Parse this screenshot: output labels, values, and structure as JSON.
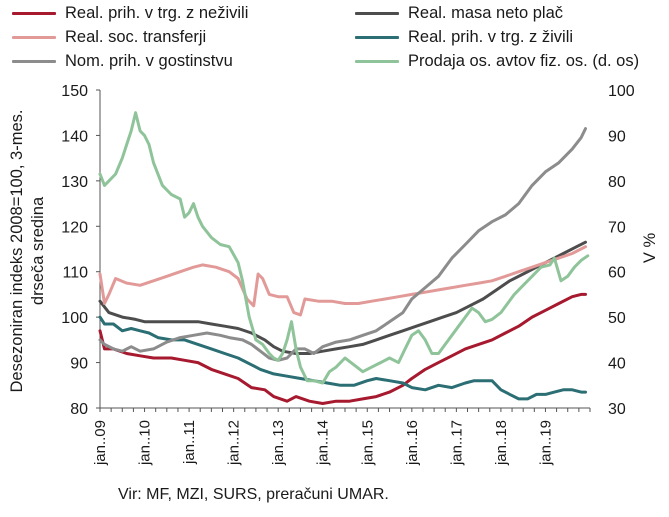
{
  "chart_data": {
    "type": "line",
    "ylabel": "Desezoniran indeks 2008=100, 3-mes. drseča sredina",
    "ylabel_lines": [
      "Desezoniran indeks 2008=100, 3-mes.",
      "drseča sredina"
    ],
    "y2label": "V %",
    "ylim": [
      80,
      150
    ],
    "yticks": [
      "80",
      "90",
      "100",
      "110",
      "120",
      "130",
      "140",
      "150"
    ],
    "y2lim": [
      30,
      100
    ],
    "y2ticks": [
      "30",
      "40",
      "50",
      "60",
      "70",
      "80",
      "90",
      "100"
    ],
    "xlim": [
      2009.0,
      2020.0
    ],
    "xticks": [
      {
        "x": 2009,
        "label": "jan..09"
      },
      {
        "x": 2010,
        "label": "jan..10"
      },
      {
        "x": 2011,
        "label": "jan..11"
      },
      {
        "x": 2012,
        "label": "jan..12"
      },
      {
        "x": 2013,
        "label": "jan..13"
      },
      {
        "x": 2014,
        "label": "jan..14"
      },
      {
        "x": 2015,
        "label": "jan..15"
      },
      {
        "x": 2016,
        "label": "jan..16"
      },
      {
        "x": 2017,
        "label": "jan..17"
      },
      {
        "x": 2018,
        "label": "jan..18"
      },
      {
        "x": 2019,
        "label": "jan..19"
      }
    ],
    "grid": false,
    "legend_position": "top",
    "series": [
      {
        "name": "Real. prih. v trg. z neživili",
        "color": "#a6192e",
        "axis": "left",
        "points": [
          [
            2009.0,
            97
          ],
          [
            2009.1,
            93
          ],
          [
            2009.3,
            93
          ],
          [
            2009.6,
            92
          ],
          [
            2009.9,
            91.5
          ],
          [
            2010.2,
            91
          ],
          [
            2010.6,
            91
          ],
          [
            2010.9,
            90.5
          ],
          [
            2011.2,
            90
          ],
          [
            2011.5,
            88.5
          ],
          [
            2011.8,
            87.5
          ],
          [
            2012.1,
            86.5
          ],
          [
            2012.4,
            84.5
          ],
          [
            2012.7,
            84
          ],
          [
            2012.9,
            82.5
          ],
          [
            2013.2,
            81.5
          ],
          [
            2013.4,
            82.5
          ],
          [
            2013.7,
            81.5
          ],
          [
            2014.0,
            81
          ],
          [
            2014.3,
            81.5
          ],
          [
            2014.6,
            81.5
          ],
          [
            2014.9,
            82
          ],
          [
            2015.2,
            82.5
          ],
          [
            2015.5,
            83.5
          ],
          [
            2015.8,
            85
          ],
          [
            2016.0,
            86.5
          ],
          [
            2016.3,
            88.5
          ],
          [
            2016.6,
            90
          ],
          [
            2016.9,
            91.5
          ],
          [
            2017.2,
            93
          ],
          [
            2017.5,
            94
          ],
          [
            2017.8,
            95
          ],
          [
            2018.1,
            96.5
          ],
          [
            2018.4,
            98
          ],
          [
            2018.7,
            100
          ],
          [
            2019.0,
            101.5
          ],
          [
            2019.3,
            103
          ],
          [
            2019.6,
            104.5
          ],
          [
            2019.8,
            105
          ],
          [
            2019.9,
            105
          ]
        ]
      },
      {
        "name": "Real. masa neto plač",
        "color": "#4d4d4d",
        "axis": "left",
        "points": [
          [
            2009.0,
            103.5
          ],
          [
            2009.2,
            101
          ],
          [
            2009.5,
            100
          ],
          [
            2009.8,
            99.5
          ],
          [
            2010.0,
            99
          ],
          [
            2010.3,
            99
          ],
          [
            2010.6,
            99
          ],
          [
            2010.9,
            99
          ],
          [
            2011.2,
            99
          ],
          [
            2011.5,
            98.5
          ],
          [
            2011.8,
            98
          ],
          [
            2012.1,
            97.5
          ],
          [
            2012.4,
            96.5
          ],
          [
            2012.7,
            95
          ],
          [
            2012.9,
            93.5
          ],
          [
            2013.1,
            92.5
          ],
          [
            2013.4,
            92
          ],
          [
            2013.7,
            92
          ],
          [
            2014.0,
            92.5
          ],
          [
            2014.3,
            93
          ],
          [
            2014.6,
            93.5
          ],
          [
            2014.9,
            94
          ],
          [
            2015.2,
            95
          ],
          [
            2015.5,
            96
          ],
          [
            2015.8,
            97
          ],
          [
            2016.1,
            98
          ],
          [
            2016.4,
            99
          ],
          [
            2016.7,
            100
          ],
          [
            2017.0,
            101
          ],
          [
            2017.3,
            102.5
          ],
          [
            2017.6,
            104
          ],
          [
            2017.9,
            106
          ],
          [
            2018.2,
            108
          ],
          [
            2018.5,
            109.5
          ],
          [
            2018.8,
            111
          ],
          [
            2019.1,
            112.5
          ],
          [
            2019.4,
            114
          ],
          [
            2019.7,
            115.5
          ],
          [
            2019.9,
            116.5
          ]
        ]
      },
      {
        "name": "Real. soc. transferji",
        "color": "#e29a98",
        "axis": "left",
        "points": [
          [
            2009.0,
            109.5
          ],
          [
            2009.1,
            103
          ],
          [
            2009.2,
            105
          ],
          [
            2009.35,
            108.5
          ],
          [
            2009.6,
            107.5
          ],
          [
            2009.9,
            107
          ],
          [
            2010.2,
            108
          ],
          [
            2010.5,
            109
          ],
          [
            2010.8,
            110
          ],
          [
            2011.1,
            111
          ],
          [
            2011.3,
            111.5
          ],
          [
            2011.6,
            111
          ],
          [
            2011.9,
            110
          ],
          [
            2012.1,
            108.5
          ],
          [
            2012.3,
            104
          ],
          [
            2012.45,
            102.5
          ],
          [
            2012.55,
            109.5
          ],
          [
            2012.65,
            108.5
          ],
          [
            2012.8,
            105
          ],
          [
            2013.0,
            104.5
          ],
          [
            2013.2,
            104.5
          ],
          [
            2013.35,
            101
          ],
          [
            2013.5,
            100.5
          ],
          [
            2013.6,
            104
          ],
          [
            2013.9,
            103.5
          ],
          [
            2014.2,
            103.5
          ],
          [
            2014.5,
            103
          ],
          [
            2014.8,
            103
          ],
          [
            2015.1,
            103.5
          ],
          [
            2015.4,
            104
          ],
          [
            2015.7,
            104.5
          ],
          [
            2016.0,
            105
          ],
          [
            2016.3,
            105.5
          ],
          [
            2016.6,
            106
          ],
          [
            2016.9,
            106.5
          ],
          [
            2017.2,
            107
          ],
          [
            2017.5,
            107.5
          ],
          [
            2017.8,
            108
          ],
          [
            2018.1,
            109
          ],
          [
            2018.4,
            110
          ],
          [
            2018.7,
            111
          ],
          [
            2019.0,
            112
          ],
          [
            2019.3,
            113
          ],
          [
            2019.6,
            114
          ],
          [
            2019.9,
            115.5
          ]
        ]
      },
      {
        "name": "Real. prih. v trg. z živili",
        "color": "#2b6e73",
        "axis": "left",
        "points": [
          [
            2009.0,
            100
          ],
          [
            2009.1,
            98.5
          ],
          [
            2009.3,
            98.5
          ],
          [
            2009.5,
            97
          ],
          [
            2009.7,
            97.5
          ],
          [
            2009.9,
            97
          ],
          [
            2010.1,
            96.5
          ],
          [
            2010.3,
            95.5
          ],
          [
            2010.6,
            95
          ],
          [
            2010.9,
            95
          ],
          [
            2011.2,
            94
          ],
          [
            2011.5,
            93
          ],
          [
            2011.8,
            92
          ],
          [
            2012.1,
            91
          ],
          [
            2012.4,
            89.5
          ],
          [
            2012.6,
            88.5
          ],
          [
            2012.9,
            87.5
          ],
          [
            2013.2,
            87
          ],
          [
            2013.5,
            86.5
          ],
          [
            2013.8,
            86
          ],
          [
            2014.1,
            85.5
          ],
          [
            2014.4,
            85
          ],
          [
            2014.7,
            85
          ],
          [
            2015.0,
            86
          ],
          [
            2015.2,
            86.5
          ],
          [
            2015.5,
            86
          ],
          [
            2015.8,
            85.5
          ],
          [
            2016.0,
            84.5
          ],
          [
            2016.3,
            84
          ],
          [
            2016.6,
            85
          ],
          [
            2016.9,
            84.5
          ],
          [
            2017.2,
            85.5
          ],
          [
            2017.4,
            86
          ],
          [
            2017.6,
            86
          ],
          [
            2017.8,
            86
          ],
          [
            2018.0,
            84
          ],
          [
            2018.2,
            83
          ],
          [
            2018.4,
            82
          ],
          [
            2018.6,
            82
          ],
          [
            2018.8,
            83
          ],
          [
            2019.0,
            83
          ],
          [
            2019.2,
            83.5
          ],
          [
            2019.4,
            84
          ],
          [
            2019.6,
            84
          ],
          [
            2019.8,
            83.5
          ],
          [
            2019.9,
            83.5
          ]
        ]
      },
      {
        "name": "Nom. prih. v gostinstvu",
        "color": "#8c8c8c",
        "axis": "left",
        "points": [
          [
            2009.0,
            95
          ],
          [
            2009.1,
            94
          ],
          [
            2009.3,
            93
          ],
          [
            2009.5,
            92.5
          ],
          [
            2009.7,
            93.5
          ],
          [
            2009.9,
            92.5
          ],
          [
            2010.2,
            93
          ],
          [
            2010.5,
            94.5
          ],
          [
            2010.8,
            95.5
          ],
          [
            2011.1,
            96
          ],
          [
            2011.4,
            96.5
          ],
          [
            2011.7,
            96
          ],
          [
            2011.9,
            95.5
          ],
          [
            2012.2,
            95
          ],
          [
            2012.4,
            94
          ],
          [
            2012.6,
            92.5
          ],
          [
            2012.8,
            91
          ],
          [
            2013.0,
            90.5
          ],
          [
            2013.2,
            91
          ],
          [
            2013.4,
            93
          ],
          [
            2013.6,
            93
          ],
          [
            2013.8,
            92
          ],
          [
            2014.0,
            93.5
          ],
          [
            2014.3,
            94.5
          ],
          [
            2014.6,
            95
          ],
          [
            2014.9,
            96
          ],
          [
            2015.2,
            97
          ],
          [
            2015.5,
            99
          ],
          [
            2015.8,
            101
          ],
          [
            2016.0,
            104
          ],
          [
            2016.3,
            106.5
          ],
          [
            2016.6,
            109
          ],
          [
            2016.9,
            113
          ],
          [
            2017.2,
            116
          ],
          [
            2017.5,
            119
          ],
          [
            2017.8,
            121
          ],
          [
            2018.1,
            122.5
          ],
          [
            2018.4,
            125
          ],
          [
            2018.7,
            129
          ],
          [
            2019.0,
            132
          ],
          [
            2019.3,
            134
          ],
          [
            2019.6,
            137
          ],
          [
            2019.8,
            139.5
          ],
          [
            2019.9,
            141.5
          ]
        ]
      },
      {
        "name": "Prodaja os. avtov fiz. os. (d. os)",
        "color": "#8fc49a",
        "axis": "right",
        "points": [
          [
            2009.0,
            81.5
          ],
          [
            2009.1,
            79
          ],
          [
            2009.2,
            80
          ],
          [
            2009.35,
            81.5
          ],
          [
            2009.5,
            85
          ],
          [
            2009.6,
            88
          ],
          [
            2009.7,
            91
          ],
          [
            2009.8,
            95
          ],
          [
            2009.9,
            91
          ],
          [
            2010.0,
            90
          ],
          [
            2010.1,
            88
          ],
          [
            2010.2,
            84
          ],
          [
            2010.4,
            79
          ],
          [
            2010.6,
            77
          ],
          [
            2010.8,
            76
          ],
          [
            2010.9,
            72
          ],
          [
            2011.0,
            73
          ],
          [
            2011.1,
            75
          ],
          [
            2011.2,
            72
          ],
          [
            2011.3,
            70
          ],
          [
            2011.5,
            67.5
          ],
          [
            2011.7,
            66
          ],
          [
            2011.9,
            65.5
          ],
          [
            2012.1,
            62
          ],
          [
            2012.2,
            58
          ],
          [
            2012.35,
            50
          ],
          [
            2012.5,
            45
          ],
          [
            2012.65,
            44
          ],
          [
            2012.8,
            42
          ],
          [
            2012.9,
            41
          ],
          [
            2013.0,
            40.5
          ],
          [
            2013.1,
            42
          ],
          [
            2013.2,
            45
          ],
          [
            2013.3,
            49
          ],
          [
            2013.4,
            43
          ],
          [
            2013.5,
            39
          ],
          [
            2013.65,
            36
          ],
          [
            2013.8,
            36
          ],
          [
            2014.0,
            35.5
          ],
          [
            2014.15,
            38
          ],
          [
            2014.3,
            39
          ],
          [
            2014.5,
            41
          ],
          [
            2014.7,
            39.5
          ],
          [
            2014.9,
            38
          ],
          [
            2015.1,
            39
          ],
          [
            2015.3,
            40
          ],
          [
            2015.5,
            41
          ],
          [
            2015.7,
            40
          ],
          [
            2015.85,
            43
          ],
          [
            2016.0,
            46
          ],
          [
            2016.15,
            47
          ],
          [
            2016.3,
            45
          ],
          [
            2016.45,
            42
          ],
          [
            2016.6,
            42
          ],
          [
            2016.75,
            44
          ],
          [
            2016.9,
            46
          ],
          [
            2017.05,
            48
          ],
          [
            2017.2,
            50
          ],
          [
            2017.35,
            52
          ],
          [
            2017.5,
            51
          ],
          [
            2017.65,
            49
          ],
          [
            2017.8,
            49.5
          ],
          [
            2018.0,
            51
          ],
          [
            2018.15,
            53
          ],
          [
            2018.3,
            55
          ],
          [
            2018.5,
            57
          ],
          [
            2018.7,
            59
          ],
          [
            2018.9,
            61
          ],
          [
            2019.1,
            61.5
          ],
          [
            2019.2,
            63
          ],
          [
            2019.35,
            58
          ],
          [
            2019.5,
            59
          ],
          [
            2019.65,
            61
          ],
          [
            2019.8,
            62.5
          ],
          [
            2019.95,
            63.5
          ]
        ]
      }
    ]
  },
  "source_text": "Vir: MF, MZI, SURS, preračuni UMAR."
}
